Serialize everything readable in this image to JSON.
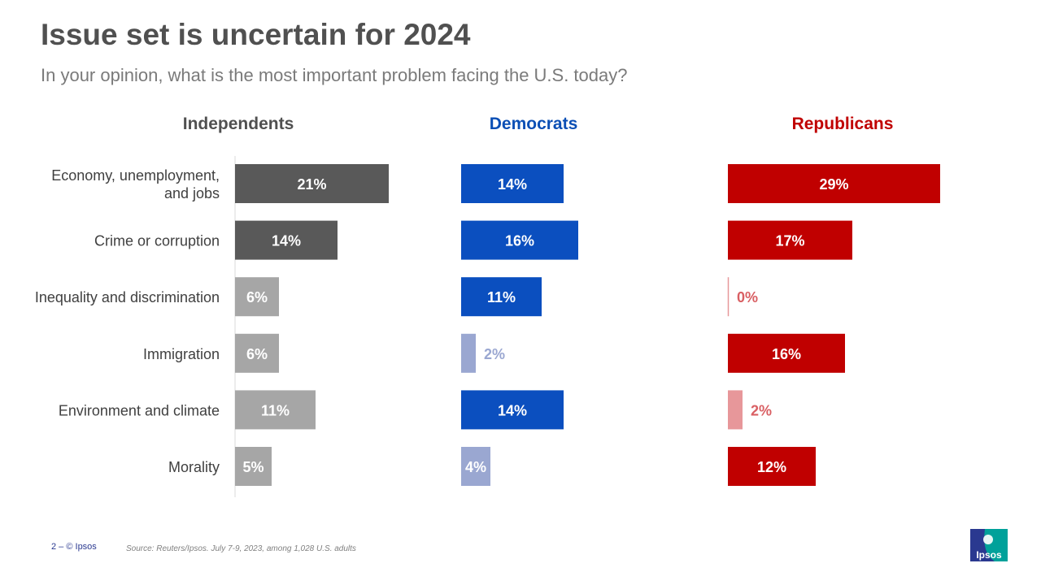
{
  "header": {
    "title": "Issue set is uncertain for 2024",
    "subtitle": "In your opinion, what is the most important problem facing the U.S. today?"
  },
  "footer": {
    "page": "2 –  © Ipsos",
    "source": "Source: Reuters/Ipsos. July 7-9, 2023, among 1,028 U.S. adults"
  },
  "logo": {
    "text": "Ipsos",
    "colors": [
      "#2a3990",
      "#00a19a"
    ]
  },
  "chart_data": {
    "type": "bar",
    "orientation": "horizontal",
    "categories": [
      [
        "Economy, unemployment,",
        "and jobs"
      ],
      [
        "Crime or corruption"
      ],
      [
        "Inequality and discrimination"
      ],
      [
        "Immigration"
      ],
      [
        "Environment and climate"
      ],
      [
        "Morality"
      ]
    ],
    "xlim": [
      0,
      30
    ],
    "series": [
      {
        "name": "Independents",
        "header_color": "#505050",
        "values": [
          21,
          14,
          6,
          6,
          11,
          5
        ],
        "labels": [
          "21%",
          "14%",
          "6%",
          "6%",
          "11%",
          "5%"
        ],
        "bar_colors": [
          "#595959",
          "#595959",
          "#a6a6a6",
          "#a6a6a6",
          "#a6a6a6",
          "#a6a6a6"
        ],
        "label_colors": [
          "#ffffff",
          "#ffffff",
          "#ffffff",
          "#ffffff",
          "#ffffff",
          "#ffffff"
        ],
        "label_inside": [
          true,
          true,
          true,
          true,
          true,
          true
        ]
      },
      {
        "name": "Democrats",
        "header_color": "#0b4fb5",
        "values": [
          14,
          16,
          11,
          2,
          14,
          4
        ],
        "labels": [
          "14%",
          "16%",
          "11%",
          "2%",
          "14%",
          "4%"
        ],
        "bar_colors": [
          "#0b4fbf",
          "#0b4fbf",
          "#0b4fbf",
          "#9aa7d1",
          "#0b4fbf",
          "#9aa7d1"
        ],
        "label_colors": [
          "#ffffff",
          "#ffffff",
          "#ffffff",
          "#9aa7d1",
          "#ffffff",
          "#ffffff"
        ],
        "label_inside": [
          true,
          true,
          true,
          false,
          true,
          true
        ]
      },
      {
        "name": "Republicans",
        "header_color": "#c00000",
        "values": [
          29,
          17,
          0,
          16,
          2,
          12
        ],
        "labels": [
          "29%",
          "17%",
          "0%",
          "16%",
          "2%",
          "12%"
        ],
        "bar_colors": [
          "#c00000",
          "#c00000",
          "#e7979a",
          "#c00000",
          "#e7979a",
          "#c00000"
        ],
        "label_colors": [
          "#ffffff",
          "#ffffff",
          "#d95f63",
          "#ffffff",
          "#d95f63",
          "#ffffff"
        ],
        "label_inside": [
          true,
          true,
          false,
          true,
          false,
          true
        ]
      }
    ]
  }
}
